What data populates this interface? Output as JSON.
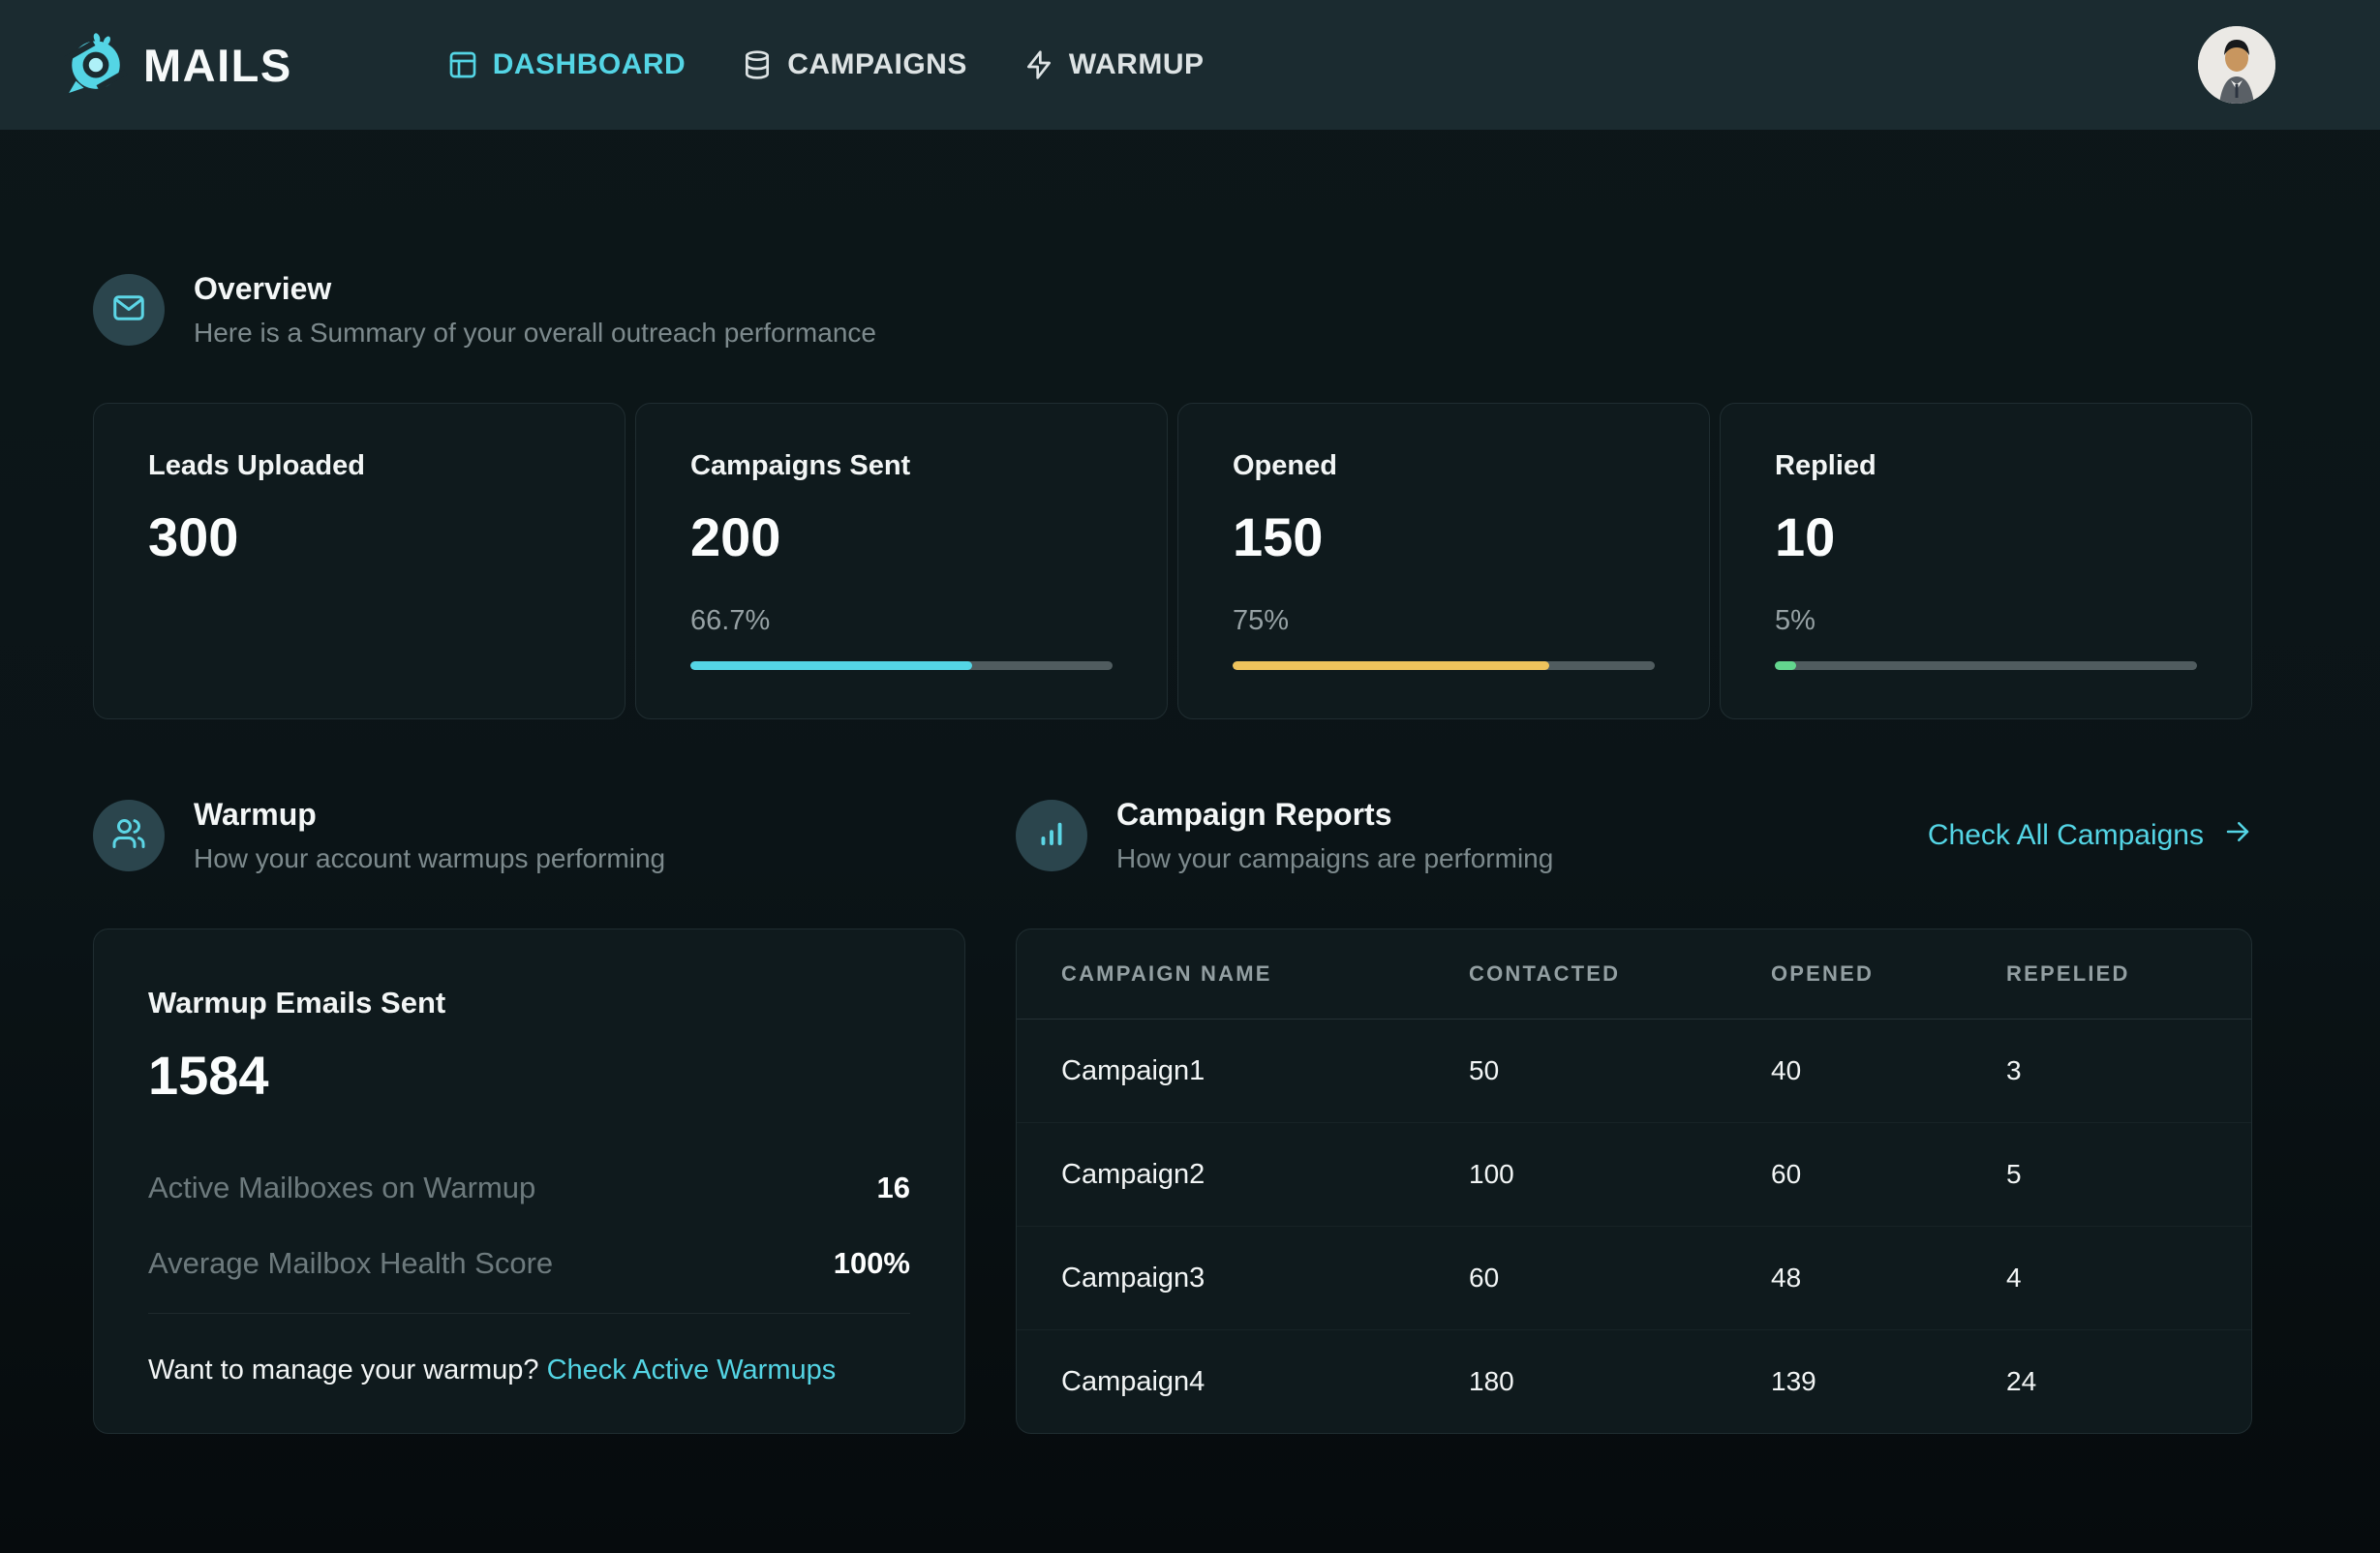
{
  "header": {
    "brand": "MAILS",
    "nav": [
      {
        "label": "DASHBOARD",
        "icon": "dashboard-icon",
        "active": true
      },
      {
        "label": "CAMPAIGNS",
        "icon": "database-icon",
        "active": false
      },
      {
        "label": "WARMUP",
        "icon": "zap-icon",
        "active": false
      }
    ],
    "avatar": "user-avatar"
  },
  "overview": {
    "icon": "mail-icon",
    "title": "Overview",
    "subtitle": "Here is a Summary of your overall outreach performance",
    "stats": [
      {
        "label": "Leads Uploaded",
        "value": "300",
        "percent": null,
        "bar_pct": null,
        "bar_color": null
      },
      {
        "label": "Campaigns Sent",
        "value": "200",
        "percent": "66.7%",
        "bar_pct": 66.7,
        "bar_color": "#54d5e5"
      },
      {
        "label": "Opened",
        "value": "150",
        "percent": "75%",
        "bar_pct": 75,
        "bar_color": "#eec35c"
      },
      {
        "label": "Replied",
        "value": "10",
        "percent": "5%",
        "bar_pct": 5,
        "bar_color": "#63d68e"
      }
    ]
  },
  "warmup": {
    "icon": "users-icon",
    "title": "Warmup",
    "subtitle": "How your account warmups performing",
    "card": {
      "title": "Warmup Emails Sent",
      "value": "1584",
      "rows": [
        {
          "label": "Active Mailboxes on Warmup",
          "value": "16"
        },
        {
          "label": "Average Mailbox Health Score",
          "value": "100%"
        }
      ],
      "footer_text": "Want to manage your warmup?",
      "footer_link": "Check Active Warmups"
    }
  },
  "campaign_reports": {
    "icon": "bar-chart-icon",
    "title": "Campaign Reports",
    "subtitle": "How your campaigns are performing",
    "link_label": "Check All Campaigns",
    "link_icon": "arrow-right-icon",
    "table": {
      "columns": [
        "CAMPAIGN NAME",
        "CONTACTED",
        "OPENED",
        "REPELIED"
      ],
      "rows": [
        {
          "name": "Campaign1",
          "contacted": "50",
          "opened": "40",
          "replied": "3"
        },
        {
          "name": "Campaign2",
          "contacted": "100",
          "opened": "60",
          "replied": "5"
        },
        {
          "name": "Campaign3",
          "contacted": "60",
          "opened": "48",
          "replied": "4"
        },
        {
          "name": "Campaign4",
          "contacted": "180",
          "opened": "139",
          "replied": "24"
        }
      ]
    }
  },
  "colors": {
    "header_bg": "#1b2b30",
    "page_bg": "#0b1417",
    "card_bg": "#0f1a1d",
    "accent_cyan": "#54d5e5",
    "amber": "#eec35c",
    "green": "#63d68e",
    "progress_track": "#505c5f"
  }
}
